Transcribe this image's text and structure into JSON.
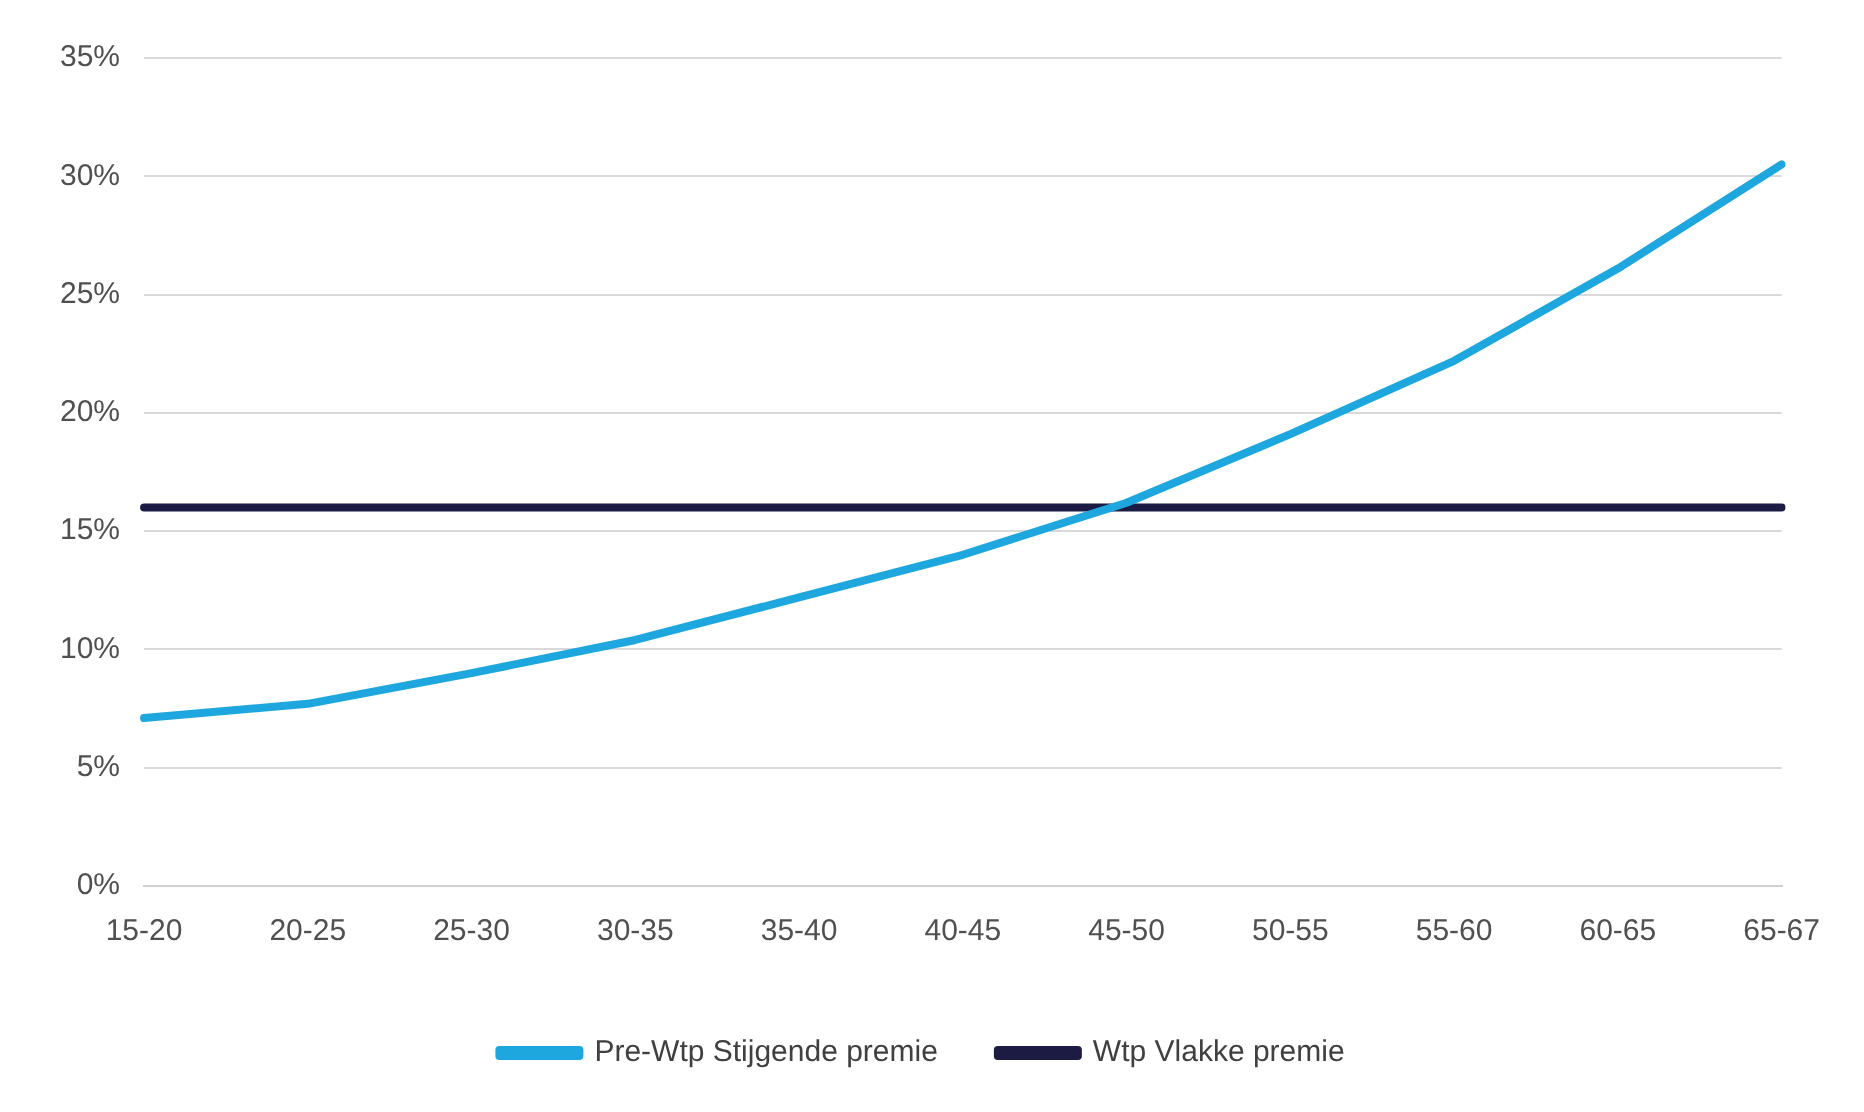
{
  "chart_data": {
    "type": "line",
    "categories": [
      "15-20",
      "20-25",
      "25-30",
      "30-35",
      "35-40",
      "40-45",
      "45-50",
      "50-55",
      "55-60",
      "60-65",
      "65-67"
    ],
    "series": [
      {
        "name": "Pre-Wtp Stijgende premie",
        "color": "#1ea7de",
        "values": [
          7.1,
          7.7,
          9.0,
          10.4,
          12.2,
          14.0,
          16.2,
          19.1,
          22.2,
          26.1,
          30.5
        ]
      },
      {
        "name": "Wtp Vlakke premie",
        "color": "#1b1b44",
        "values": [
          16,
          16,
          16,
          16,
          16,
          16,
          16,
          16,
          16,
          16,
          16
        ]
      }
    ],
    "ylim": [
      0,
      35
    ],
    "yticks": [
      {
        "value": 0,
        "label": "0%"
      },
      {
        "value": 5,
        "label": "5%"
      },
      {
        "value": 10,
        "label": "10%"
      },
      {
        "value": 15,
        "label": "15%"
      },
      {
        "value": 20,
        "label": "20%"
      },
      {
        "value": 25,
        "label": "25%"
      },
      {
        "value": 30,
        "label": "30%"
      },
      {
        "value": 35,
        "label": "35%"
      }
    ],
    "grid": "y",
    "legend": "bottom",
    "marker": "none",
    "line_style": "solid"
  }
}
